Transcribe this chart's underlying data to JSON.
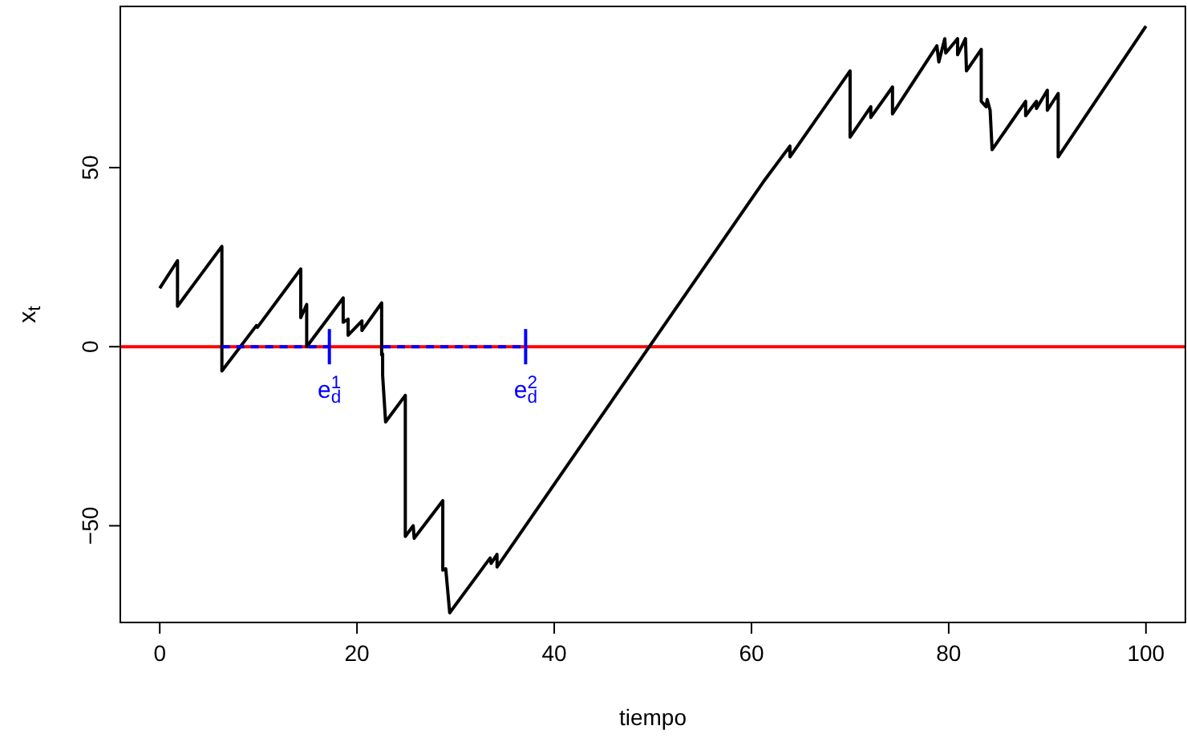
{
  "chart_data": {
    "type": "line",
    "xlabel": "tiempo",
    "ylabel": "x$_{t}$",
    "xlim": [
      -4,
      104
    ],
    "ylim": [
      -77,
      95
    ],
    "xticks": [
      0,
      20,
      40,
      60,
      80,
      100
    ],
    "yticks": [
      -50,
      0,
      50
    ],
    "grid": false,
    "series": [
      {
        "color": "#000000",
        "x": [
          0,
          1.8,
          1.8,
          6.3,
          6.3,
          9.8,
          9.9,
          14.3,
          14.3,
          14.9,
          14.9,
          18.6,
          18.6,
          19.1,
          19.1,
          20.5,
          20.5,
          22.5,
          22.5,
          22.6,
          22.6,
          22.9,
          24.9,
          24.9,
          25.7,
          25.8,
          28.7,
          28.7,
          29.0,
          29.4,
          33.5,
          33.6,
          34.2,
          34.2,
          61.2,
          63.9,
          63.9,
          70,
          70,
          72.1,
          72.1,
          74.3,
          74.3,
          78.8,
          79.0,
          79.6,
          79.7,
          80.9,
          80.9,
          81.7,
          81.8,
          83.3,
          83.3,
          83.8,
          83.9,
          84.2,
          84.4,
          87.8,
          87.8,
          88.9,
          88.9,
          90,
          90,
          91.1,
          91.1,
          100
        ],
        "values": [
          16.3,
          24,
          11.3,
          28,
          -6.8,
          5.9,
          5.4,
          21.7,
          8.1,
          11.8,
          0,
          13.6,
          6.8,
          7.7,
          3.2,
          7.2,
          4.5,
          12.2,
          -2.3,
          -2,
          -8,
          -21,
          -13.6,
          -53,
          -50,
          -53.5,
          -43,
          -62.4,
          -62,
          -74.3,
          -59,
          -60.5,
          -58,
          -61.5,
          46,
          56,
          53,
          77,
          58.5,
          67,
          64,
          72.5,
          65,
          84,
          79.5,
          86,
          82,
          86,
          81.5,
          86,
          77,
          83,
          68.5,
          67,
          69,
          66,
          55,
          68.5,
          64.5,
          68.5,
          66.5,
          71.6,
          66,
          70.7,
          53,
          89.5
        ]
      },
      {
        "color": "#0000ff",
        "line_style": "dashed",
        "x": [
          6.3,
          17.2
        ],
        "values": [
          0,
          0
        ]
      },
      {
        "color": "#0000ff",
        "line_style": "dashed",
        "x": [
          22.6,
          37.1
        ],
        "values": [
          0,
          0
        ]
      }
    ],
    "ref_lines": [
      {
        "axis": "y",
        "value": 0,
        "color": "#ff0000"
      }
    ],
    "annotations": [
      {
        "text": "e$_{d}$$^{1}$",
        "x": 17.2,
        "y": 0
      },
      {
        "text": "e$_{d}$$^{2}$",
        "x": 37.1,
        "y": 0
      }
    ]
  }
}
